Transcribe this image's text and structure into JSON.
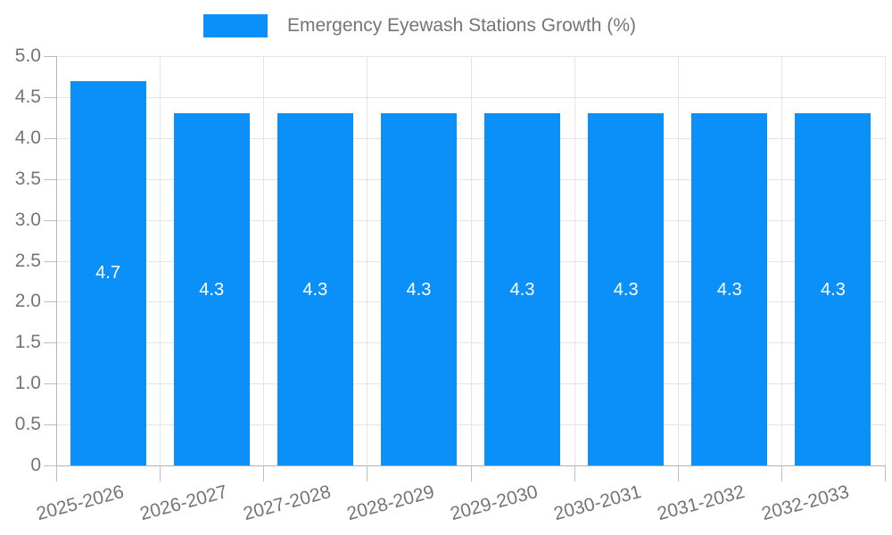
{
  "legend": {
    "label": "Emergency Eyewash Stations Growth (%)"
  },
  "chart_data": {
    "type": "bar",
    "title": "Emergency Eyewash Stations Growth (%)",
    "categories": [
      "2025-2026",
      "2026-2027",
      "2027-2028",
      "2028-2029",
      "2029-2030",
      "2030-2031",
      "2031-2032",
      "2032-2033"
    ],
    "values": [
      4.7,
      4.3,
      4.3,
      4.3,
      4.3,
      4.3,
      4.3,
      4.3
    ],
    "bar_value_labels": [
      "4.7",
      "4.3",
      "4.3",
      "4.3",
      "4.3",
      "4.3",
      "4.3",
      "4.3"
    ],
    "xlabel": "",
    "ylabel": "",
    "ylim": [
      0,
      5
    ],
    "ytick_step": 0.5,
    "ytick_labels": [
      "0",
      "0.5",
      "1.0",
      "1.5",
      "2.0",
      "2.5",
      "3.0",
      "3.5",
      "4.0",
      "4.5",
      "5.0"
    ],
    "grid": true,
    "legend_position": "top-center",
    "colors": {
      "bar": "#0a90f8",
      "grid": "#e4e4e4",
      "axis": "#b4b4b4",
      "tick_text": "#757575",
      "value_label": "#ffffff",
      "background": "#ffffff"
    }
  }
}
